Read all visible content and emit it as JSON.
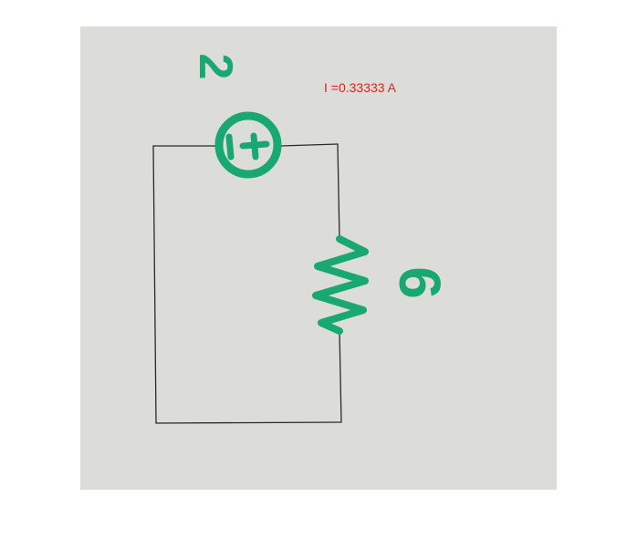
{
  "current_label": "I =0.33333 A",
  "source_value": "2",
  "resistor_value": "6",
  "colors": {
    "paper": "#dcdcd8",
    "wire": "#2a2a2a",
    "marker": "#1aa872",
    "label": "#e0221a"
  }
}
